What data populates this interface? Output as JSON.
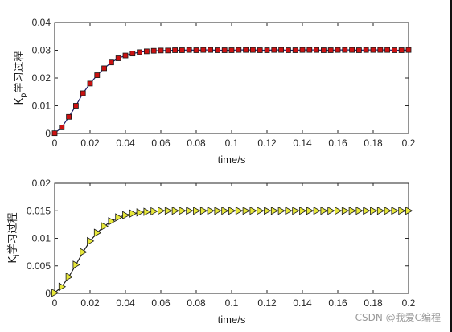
{
  "chart_data": [
    {
      "type": "line",
      "ylabel_main": "K",
      "ylabel_sub": "p",
      "ylabel_rest": "学习过程",
      "xlabel": "time/s",
      "xlim": [
        0,
        0.2
      ],
      "ylim": [
        0,
        0.04
      ],
      "xticks": [
        "0",
        "0.02",
        "0.04",
        "0.06",
        "0.08",
        "0.1",
        "0.12",
        "0.14",
        "0.16",
        "0.18",
        "0.2"
      ],
      "yticks": [
        "0",
        "0.01",
        "0.02",
        "0.03",
        "0.04"
      ],
      "marker": "square",
      "marker_color": "#cc1111",
      "line_color": "#1a1a66",
      "series": [
        {
          "x": [
            0,
            0.004,
            0.008,
            0.012,
            0.016,
            0.02,
            0.024,
            0.028,
            0.032,
            0.036,
            0.04,
            0.044,
            0.048,
            0.052,
            0.056,
            0.06,
            0.064,
            0.068,
            0.072,
            0.076,
            0.08,
            0.084,
            0.088,
            0.092,
            0.096,
            0.1,
            0.104,
            0.108,
            0.112,
            0.116,
            0.12,
            0.124,
            0.128,
            0.132,
            0.136,
            0.14,
            0.144,
            0.148,
            0.152,
            0.156,
            0.16,
            0.164,
            0.168,
            0.172,
            0.176,
            0.18,
            0.184,
            0.188,
            0.192,
            0.196,
            0.2
          ],
          "y": [
            0.0001,
            0.0022,
            0.006,
            0.01,
            0.0145,
            0.018,
            0.021,
            0.0235,
            0.0256,
            0.0271,
            0.0281,
            0.0288,
            0.0293,
            0.0296,
            0.0298,
            0.0299,
            0.0299,
            0.03,
            0.03,
            0.0301,
            0.03,
            0.0301,
            0.0301,
            0.03,
            0.03,
            0.03,
            0.0301,
            0.0301,
            0.0301,
            0.03,
            0.03,
            0.0301,
            0.0301,
            0.03,
            0.03,
            0.0301,
            0.0301,
            0.0301,
            0.03,
            0.03,
            0.0301,
            0.0301,
            0.0301,
            0.03,
            0.0301,
            0.0301,
            0.0301,
            0.0301,
            0.03,
            0.03,
            0.0301
          ]
        }
      ]
    },
    {
      "type": "line",
      "ylabel_main": "K",
      "ylabel_sub": "i",
      "ylabel_rest": "学习过程",
      "xlabel": "time/s",
      "xlim": [
        0,
        0.2
      ],
      "ylim": [
        0,
        0.02
      ],
      "xticks": [
        "0",
        "0.02",
        "0.04",
        "0.06",
        "0.08",
        "0.1",
        "0.12",
        "0.14",
        "0.16",
        "0.18",
        "0.2"
      ],
      "yticks": [
        "0",
        "0.005",
        "0.01",
        "0.015",
        "0.02"
      ],
      "marker": "triangle-right",
      "marker_color": "#e8e83a",
      "line_color": "#1a1a1a",
      "series": [
        {
          "x": [
            0,
            0.004,
            0.008,
            0.012,
            0.016,
            0.02,
            0.024,
            0.028,
            0.032,
            0.036,
            0.04,
            0.044,
            0.048,
            0.052,
            0.056,
            0.06,
            0.064,
            0.068,
            0.072,
            0.076,
            0.08,
            0.084,
            0.088,
            0.092,
            0.096,
            0.1,
            0.104,
            0.108,
            0.112,
            0.116,
            0.12,
            0.124,
            0.128,
            0.132,
            0.136,
            0.14,
            0.144,
            0.148,
            0.152,
            0.156,
            0.16,
            0.164,
            0.168,
            0.172,
            0.176,
            0.18,
            0.184,
            0.188,
            0.192,
            0.196,
            0.2
          ],
          "y": [
            0.0001,
            0.0012,
            0.003,
            0.0052,
            0.0075,
            0.0095,
            0.011,
            0.0122,
            0.0131,
            0.0138,
            0.0142,
            0.0145,
            0.0147,
            0.0148,
            0.0149,
            0.015,
            0.015,
            0.015,
            0.015,
            0.015,
            0.015,
            0.015,
            0.015,
            0.015,
            0.015,
            0.015,
            0.015,
            0.015,
            0.015,
            0.015,
            0.015,
            0.015,
            0.015,
            0.015,
            0.015,
            0.015,
            0.015,
            0.015,
            0.015,
            0.015,
            0.015,
            0.015,
            0.015,
            0.015,
            0.015,
            0.015,
            0.015,
            0.015,
            0.015,
            0.015,
            0.015
          ]
        }
      ]
    }
  ],
  "watermark": "CSDN @我爱C编程"
}
